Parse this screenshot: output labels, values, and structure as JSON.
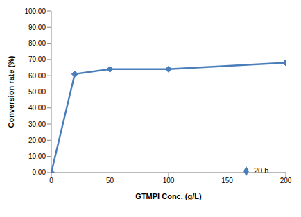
{
  "chart_data": {
    "type": "line",
    "xlabel": "GTMPI Conc. (g/L)",
    "ylabel": "Conversion rate (%)",
    "x": [
      0,
      20,
      50,
      100,
      200
    ],
    "series": [
      {
        "name": "20 h",
        "color": "#4a7ebb",
        "values": [
          0,
          61,
          64,
          64,
          68
        ],
        "marker": "diamond"
      }
    ],
    "xlim": [
      0,
      200
    ],
    "xticks": [
      0,
      50,
      100,
      150,
      200
    ],
    "ylim": [
      0,
      100
    ],
    "yticks": [
      {
        "value": 0,
        "label": "0.00"
      },
      {
        "value": 10,
        "label": "10.00"
      },
      {
        "value": 20,
        "label": "20.00"
      },
      {
        "value": 30,
        "label": "30.00"
      },
      {
        "value": 40,
        "label": "40.00"
      },
      {
        "value": 50,
        "label": "50.00"
      },
      {
        "value": 60,
        "label": "60.00"
      },
      {
        "value": 70,
        "label": "70.00"
      },
      {
        "value": 80,
        "label": "80.00"
      },
      {
        "value": 90,
        "label": "90.00"
      },
      {
        "value": 100,
        "label": "100.00"
      }
    ],
    "grid": false,
    "legend": "lower right"
  }
}
